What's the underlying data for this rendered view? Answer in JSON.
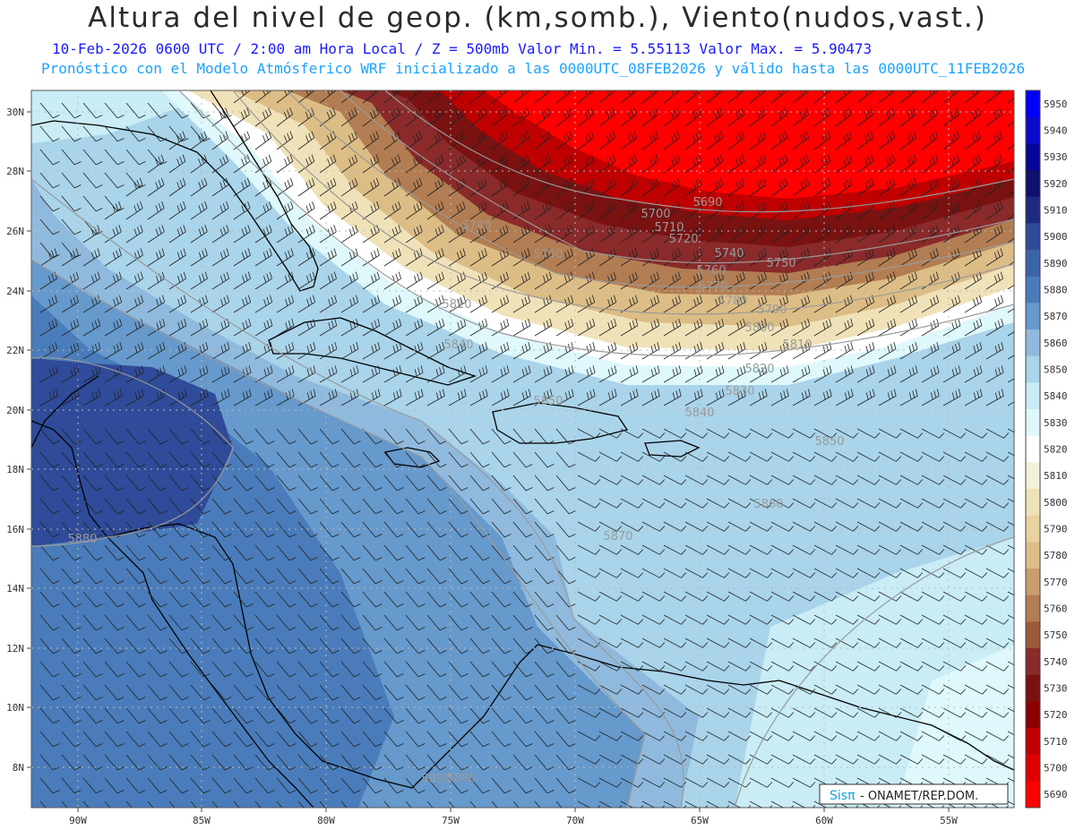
{
  "header": {
    "title": "Altura del nivel de geop. (km,somb.), Viento(nudos,vast.)",
    "line1_valid": "10-Feb-2026  0600 UTC / 2:00 am Hora Local / Z = 500mb",
    "line1_minmax": "Valor Min. = 5.55113  Valor Max. = 5.90473",
    "line2": "Pronóstico con el Modelo Atmósferico WRF inicializado a las 0000UTC_08FEB2026 y válido hasta las  0000UTC_11FEB2026"
  },
  "axes": {
    "lat_labels": [
      "30N",
      "28N",
      "26N",
      "24N",
      "22N",
      "20N",
      "18N",
      "16N",
      "14N",
      "12N",
      "10N",
      "8N"
    ],
    "lon_labels": [
      "90W",
      "85W",
      "80W",
      "75W",
      "70W",
      "65W",
      "60W",
      "55W"
    ]
  },
  "colorbar": {
    "labels": [
      "5950",
      "5940",
      "5930",
      "5920",
      "5910",
      "5900",
      "5890",
      "5880",
      "5870",
      "5860",
      "5850",
      "5840",
      "5830",
      "5820",
      "5810",
      "5800",
      "5790",
      "5780",
      "5770",
      "5760",
      "5750",
      "5740",
      "5730",
      "5720",
      "5710",
      "5700",
      "5690"
    ],
    "colors": [
      "#0000ff",
      "#0a0acc",
      "#060699",
      "#10106e",
      "#1e2a80",
      "#2f4b99",
      "#3b63a8",
      "#4a7cbb",
      "#6699cc",
      "#8fbadd",
      "#a9d4ea",
      "#c9ecf5",
      "#def8fb",
      "#ffffff",
      "#f5f0d8",
      "#f0e2b8",
      "#e8d2a0",
      "#dcbd86",
      "#c99d6c",
      "#b27d52",
      "#9c5a3a",
      "#8a2a2a",
      "#7a1212",
      "#8e0000",
      "#c00000",
      "#e00000",
      "#ff0000"
    ]
  },
  "contour_labels": [
    "5690",
    "5700",
    "5710",
    "5720",
    "5740",
    "5740",
    "5750",
    "5750",
    "5760",
    "5770",
    "5780",
    "5790",
    "5800",
    "5810",
    "5810",
    "5820",
    "5830",
    "5840",
    "5840",
    "5850",
    "5850",
    "5860",
    "5870",
    "5880",
    "5890",
    "5880"
  ],
  "credit": {
    "brand": "Sisπ",
    "text": "- ONAMET/REP.DOM."
  }
}
